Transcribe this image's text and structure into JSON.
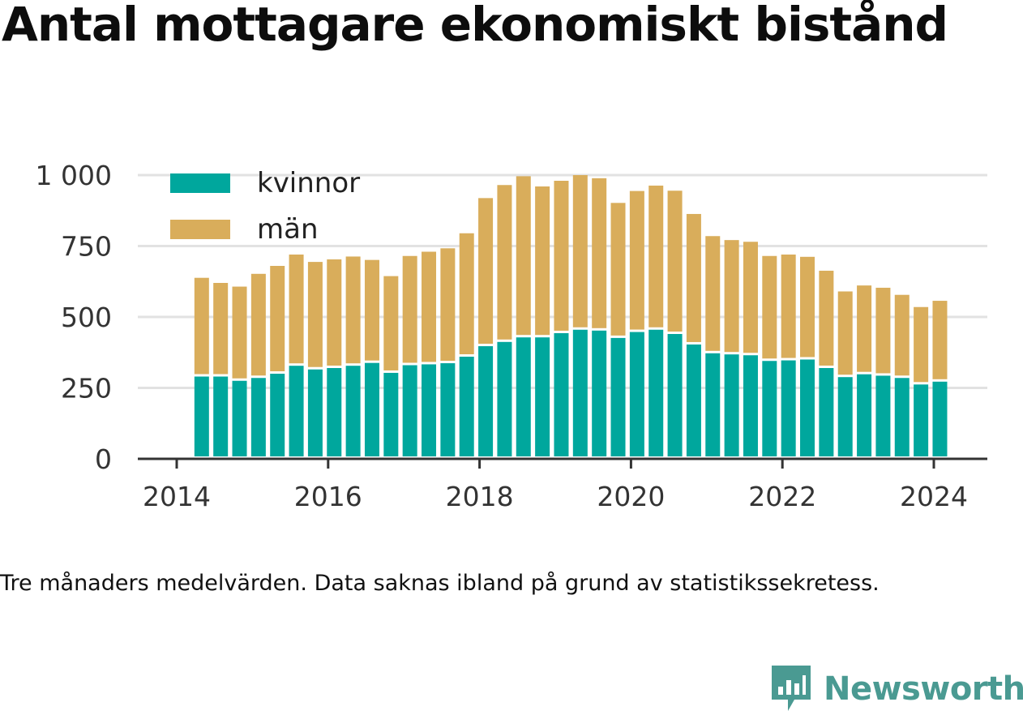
{
  "title": "Antal mottagare ekonomiskt bistånd",
  "note": "Tre månaders medelvärden. Data saknas ibland på grund av statistikssekretess.",
  "brand": {
    "name": "Newsworthy",
    "icon": "newsworthy-logo-icon"
  },
  "colors": {
    "kvinnor": "#00a79d",
    "man": "#d9ad5b",
    "grid": "#e2e2e2",
    "axis": "#333333",
    "brand": "#4a9a92"
  },
  "chart_data": {
    "type": "bar",
    "stacked": true,
    "xlabel": "",
    "ylabel": "",
    "ylim": [
      0,
      1000
    ],
    "yticks": [
      0,
      250,
      500,
      750,
      1000
    ],
    "ytick_labels": [
      "0",
      "250",
      "500",
      "750",
      "1 000"
    ],
    "xlim": [
      2014.0,
      2024.35
    ],
    "xticks": [
      2014,
      2016,
      2018,
      2020,
      2022,
      2024
    ],
    "xtick_labels": [
      "2014",
      "2016",
      "2018",
      "2020",
      "2022",
      "2024"
    ],
    "grid": true,
    "legend_position": "top-left",
    "x": [
      2014.33,
      2014.58,
      2014.83,
      2015.08,
      2015.33,
      2015.58,
      2015.83,
      2016.08,
      2016.33,
      2016.58,
      2016.83,
      2017.08,
      2017.33,
      2017.58,
      2017.83,
      2018.08,
      2018.33,
      2018.58,
      2018.83,
      2019.08,
      2019.33,
      2019.58,
      2019.83,
      2020.08,
      2020.33,
      2020.58,
      2020.83,
      2021.08,
      2021.33,
      2021.58,
      2021.83,
      2022.08,
      2022.33,
      2022.58,
      2022.83,
      2023.08,
      2023.33,
      2023.58,
      2023.83,
      2024.08
    ],
    "series": [
      {
        "name": "kvinnor",
        "values": [
          290,
          290,
          275,
          285,
          300,
          328,
          315,
          320,
          328,
          338,
          303,
          330,
          333,
          337,
          360,
          397,
          412,
          428,
          428,
          443,
          455,
          452,
          426,
          447,
          455,
          440,
          403,
          372,
          368,
          365,
          345,
          347,
          350,
          320,
          288,
          298,
          293,
          285,
          262,
          272
        ]
      },
      {
        "name": "män",
        "values": [
          348,
          330,
          332,
          367,
          380,
          392,
          379,
          383,
          385,
          363,
          341,
          385,
          397,
          405,
          435,
          522,
          553,
          568,
          532,
          537,
          545,
          537,
          476,
          497,
          508,
          505,
          460,
          413,
          403,
          400,
          370,
          373,
          362,
          343,
          302,
          313,
          310,
          293,
          273,
          285
        ]
      }
    ]
  }
}
